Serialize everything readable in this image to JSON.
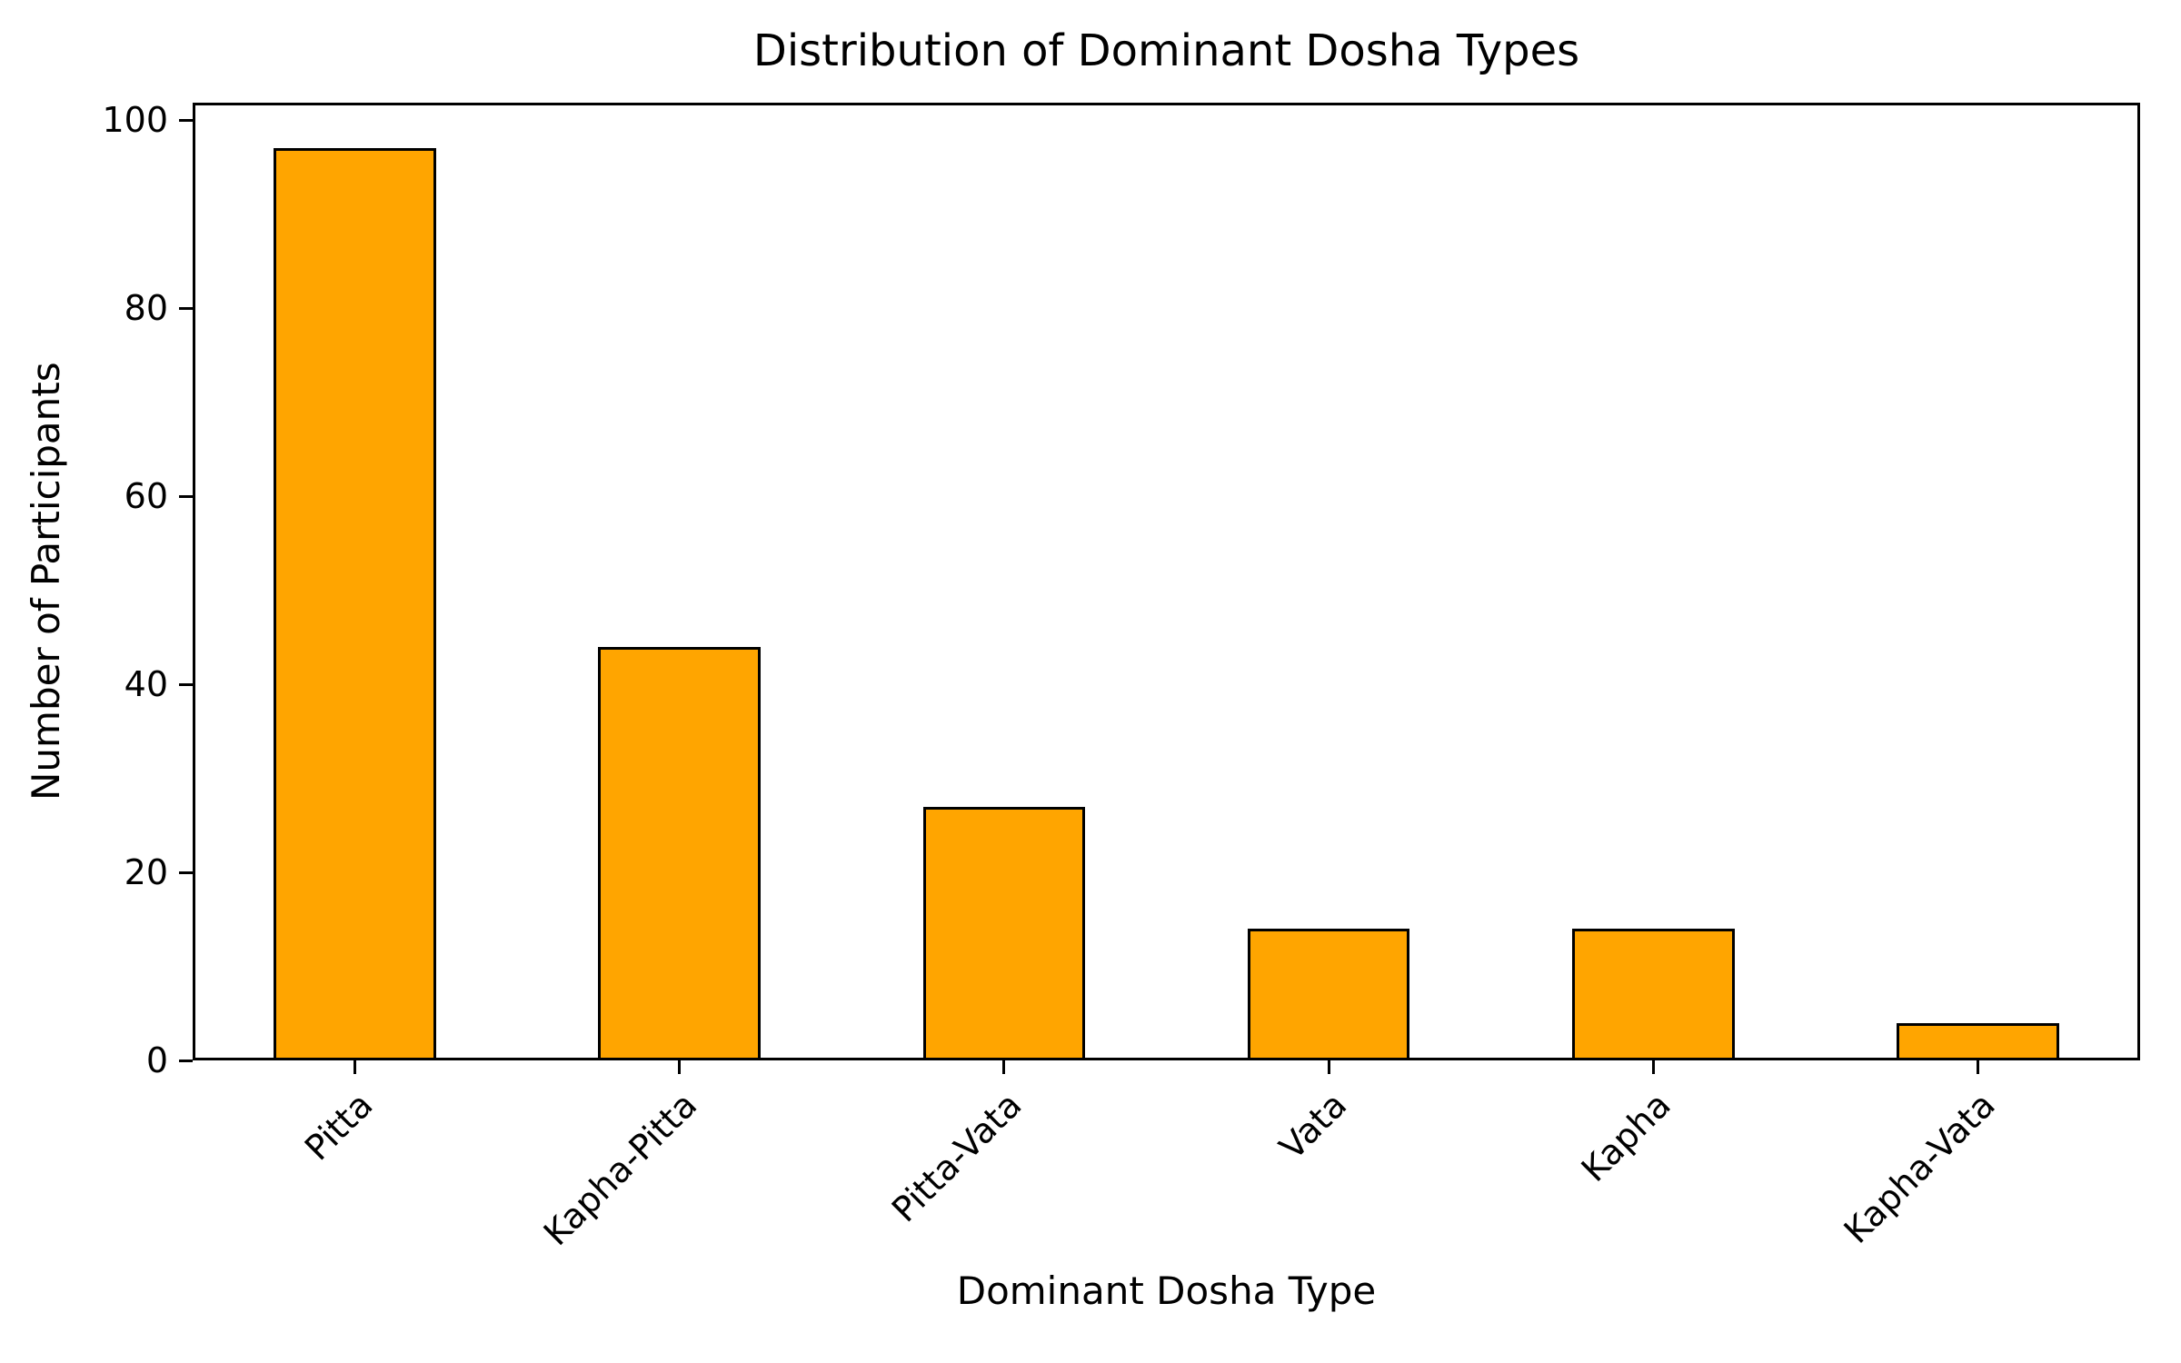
{
  "figure": {
    "background": "#ffffff",
    "text_color": "#000000"
  },
  "chart_data": {
    "type": "bar",
    "title": "Distribution of Dominant Dosha Types",
    "xlabel": "Dominant Dosha Type",
    "ylabel": "Number of Participants",
    "categories": [
      "Pitta",
      "Kapha-Pitta",
      "Pitta-Vata",
      "Vata",
      "Kapha",
      "Kapha-Vata"
    ],
    "values": [
      97,
      44,
      27,
      14,
      14,
      4
    ],
    "yticks": [
      0,
      20,
      40,
      60,
      80,
      100
    ],
    "ylim": [
      0,
      101.85
    ],
    "bar_color": "#FFA500",
    "bar_edge_color": "#000000",
    "bar_width_fraction": 0.5,
    "x_tick_rotation_deg": 45,
    "grid": false,
    "legend": "none"
  }
}
